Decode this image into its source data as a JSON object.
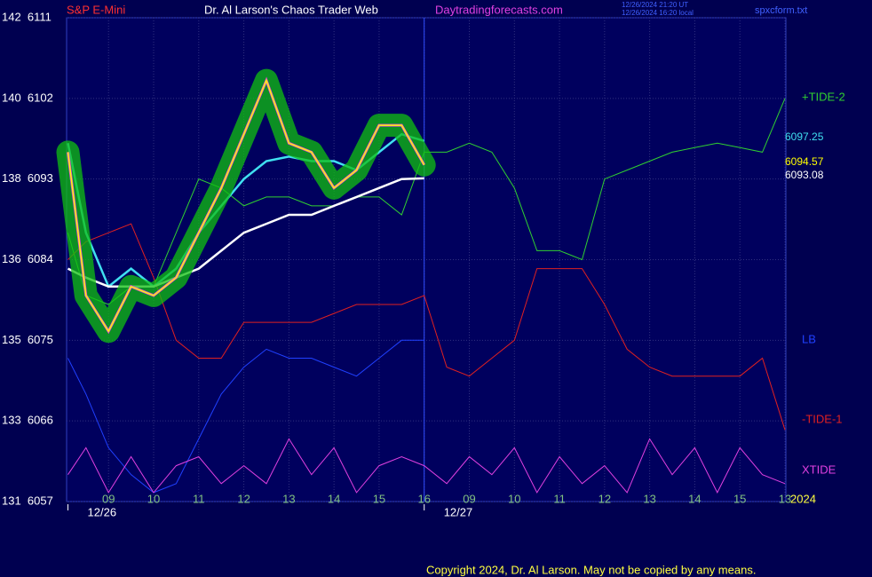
{
  "chart_data": {
    "type": "line",
    "title": "Dr. Al Larson's Chaos Trader Web",
    "instrument": "S&P E-Mini",
    "site": "Daytradingforecasts.com",
    "stamp": [
      "12/26/2024 21:20 UT",
      "12/26/2024 16:20 local"
    ],
    "file": "spxcform.txt",
    "copyright": "Copyright 2024, Dr. Al Larson. May not be copied by any means.",
    "year": "2024",
    "xlim": [
      -0.93,
      15.02
    ],
    "ylim": [
      6057,
      6111
    ],
    "grid": true,
    "yticks": [
      {
        "value": 6111,
        "label": "142  6111"
      },
      {
        "value": 6102,
        "label": "140  6102"
      },
      {
        "value": 6093,
        "label": "138  6093"
      },
      {
        "value": 6084,
        "label": "136  6084"
      },
      {
        "value": 6075,
        "label": "135  6075"
      },
      {
        "value": 6066,
        "label": "133  6066"
      },
      {
        "value": 6057,
        "label": "131  6057"
      }
    ],
    "xticks": [
      {
        "value": 0,
        "label": "09"
      },
      {
        "value": 1,
        "label": "10"
      },
      {
        "value": 2,
        "label": "11"
      },
      {
        "value": 3,
        "label": "12"
      },
      {
        "value": 4,
        "label": "13"
      },
      {
        "value": 5,
        "label": "14"
      },
      {
        "value": 6,
        "label": "15"
      },
      {
        "value": 7,
        "label": "16"
      },
      {
        "value": 8,
        "label": "09"
      },
      {
        "value": 9,
        "label": "10"
      },
      {
        "value": 10,
        "label": "11"
      },
      {
        "value": 11,
        "label": "12"
      },
      {
        "value": 12,
        "label": "13"
      },
      {
        "value": 13,
        "label": "14"
      },
      {
        "value": 14,
        "label": "15"
      },
      {
        "value": 15,
        "label": "13"
      }
    ],
    "date_ticks": [
      {
        "value": -0.9,
        "label": "12/26"
      },
      {
        "value": 7,
        "label": "12/27"
      }
    ],
    "x": [
      -0.9,
      -0.5,
      0,
      0.5,
      1,
      1.5,
      2,
      2.5,
      3,
      3.5,
      4,
      4.5,
      5,
      5.5,
      6,
      6.5,
      7,
      7.5,
      8,
      8.5,
      9,
      9.5,
      10,
      10.5,
      11,
      11.5,
      12,
      12.5,
      13,
      13.5,
      14,
      14.5,
      15
    ],
    "series": [
      {
        "name": "+TIDE-2",
        "color": "#30d030",
        "values": [
          6087,
          6080,
          6079,
          6081,
          6081,
          6087,
          6093,
          6092,
          6090,
          6091,
          6091,
          6090,
          6090,
          6091,
          6091,
          6089,
          6096,
          6096,
          6097,
          6096,
          6092,
          6085,
          6085,
          6084,
          6093,
          6094,
          6095,
          6096,
          6096.5,
          6097,
          6096.5,
          6096,
          6102
        ]
      },
      {
        "name": "-TIDE-1",
        "color": "#e02020",
        "values": [
          6084,
          6086,
          6087,
          6088,
          6082,
          6075,
          6073,
          6073,
          6077,
          6077,
          6077,
          6077,
          6078,
          6079,
          6079,
          6079,
          6080,
          6072,
          6071,
          6073,
          6075,
          6083,
          6083,
          6083,
          6079,
          6074,
          6072,
          6071,
          6071,
          6071,
          6071,
          6073,
          6065
        ]
      },
      {
        "name": "LB",
        "color": "#2040ff",
        "values": [
          6073,
          6069,
          6063,
          6060,
          6058,
          6059,
          6064,
          6069,
          6072,
          6074,
          6073,
          6073,
          6072,
          6071,
          6073,
          6075,
          6075,
          null,
          null,
          null,
          null,
          null,
          null,
          null,
          null,
          null,
          null,
          null,
          null,
          null,
          null,
          null,
          null
        ]
      },
      {
        "name": "XTIDE",
        "color": "#e040e0",
        "values": [
          6060,
          6063,
          6058,
          6062,
          6058,
          6061,
          6062,
          6059,
          6061,
          6059,
          6064,
          6060,
          6063,
          6058,
          6061,
          6062,
          6061,
          6059,
          6062,
          6060,
          6063,
          6058,
          6062,
          6059,
          6061,
          6058,
          6064,
          6060,
          6063,
          6058,
          6063,
          6060,
          6059
        ]
      },
      {
        "end_label": "6097.25",
        "color": "#40e0f0",
        "values": [
          6097,
          6087,
          6081,
          6083,
          6081,
          6083,
          6087,
          6090,
          6093,
          6095,
          6095.5,
          6095,
          6095,
          6094,
          6096,
          6098,
          6097.25,
          null,
          null,
          null,
          null,
          null,
          null,
          null,
          null,
          null,
          null,
          null,
          null,
          null,
          null,
          null,
          null
        ]
      },
      {
        "end_label": "6093.08",
        "color": "#ffffff",
        "values": [
          6083,
          6082,
          6081,
          6081,
          6081,
          6082,
          6083,
          6085,
          6087,
          6088,
          6089,
          6089,
          6090,
          6091,
          6092,
          6093,
          6093.08,
          null,
          null,
          null,
          null,
          null,
          null,
          null,
          null,
          null,
          null,
          null,
          null,
          null,
          null,
          null,
          null
        ]
      },
      {
        "end_label": "6094.57",
        "color": "#ffff00",
        "halo": "#10c010",
        "values": [
          6096,
          6080,
          6076,
          6081,
          6080,
          6082,
          6087,
          6092,
          6098,
          6104,
          6097,
          6096,
          6092,
          6094,
          6099,
          6099,
          6094.57,
          null,
          null,
          null,
          null,
          null,
          null,
          null,
          null,
          null,
          null,
          null,
          null,
          null,
          null,
          null,
          null
        ]
      }
    ]
  }
}
